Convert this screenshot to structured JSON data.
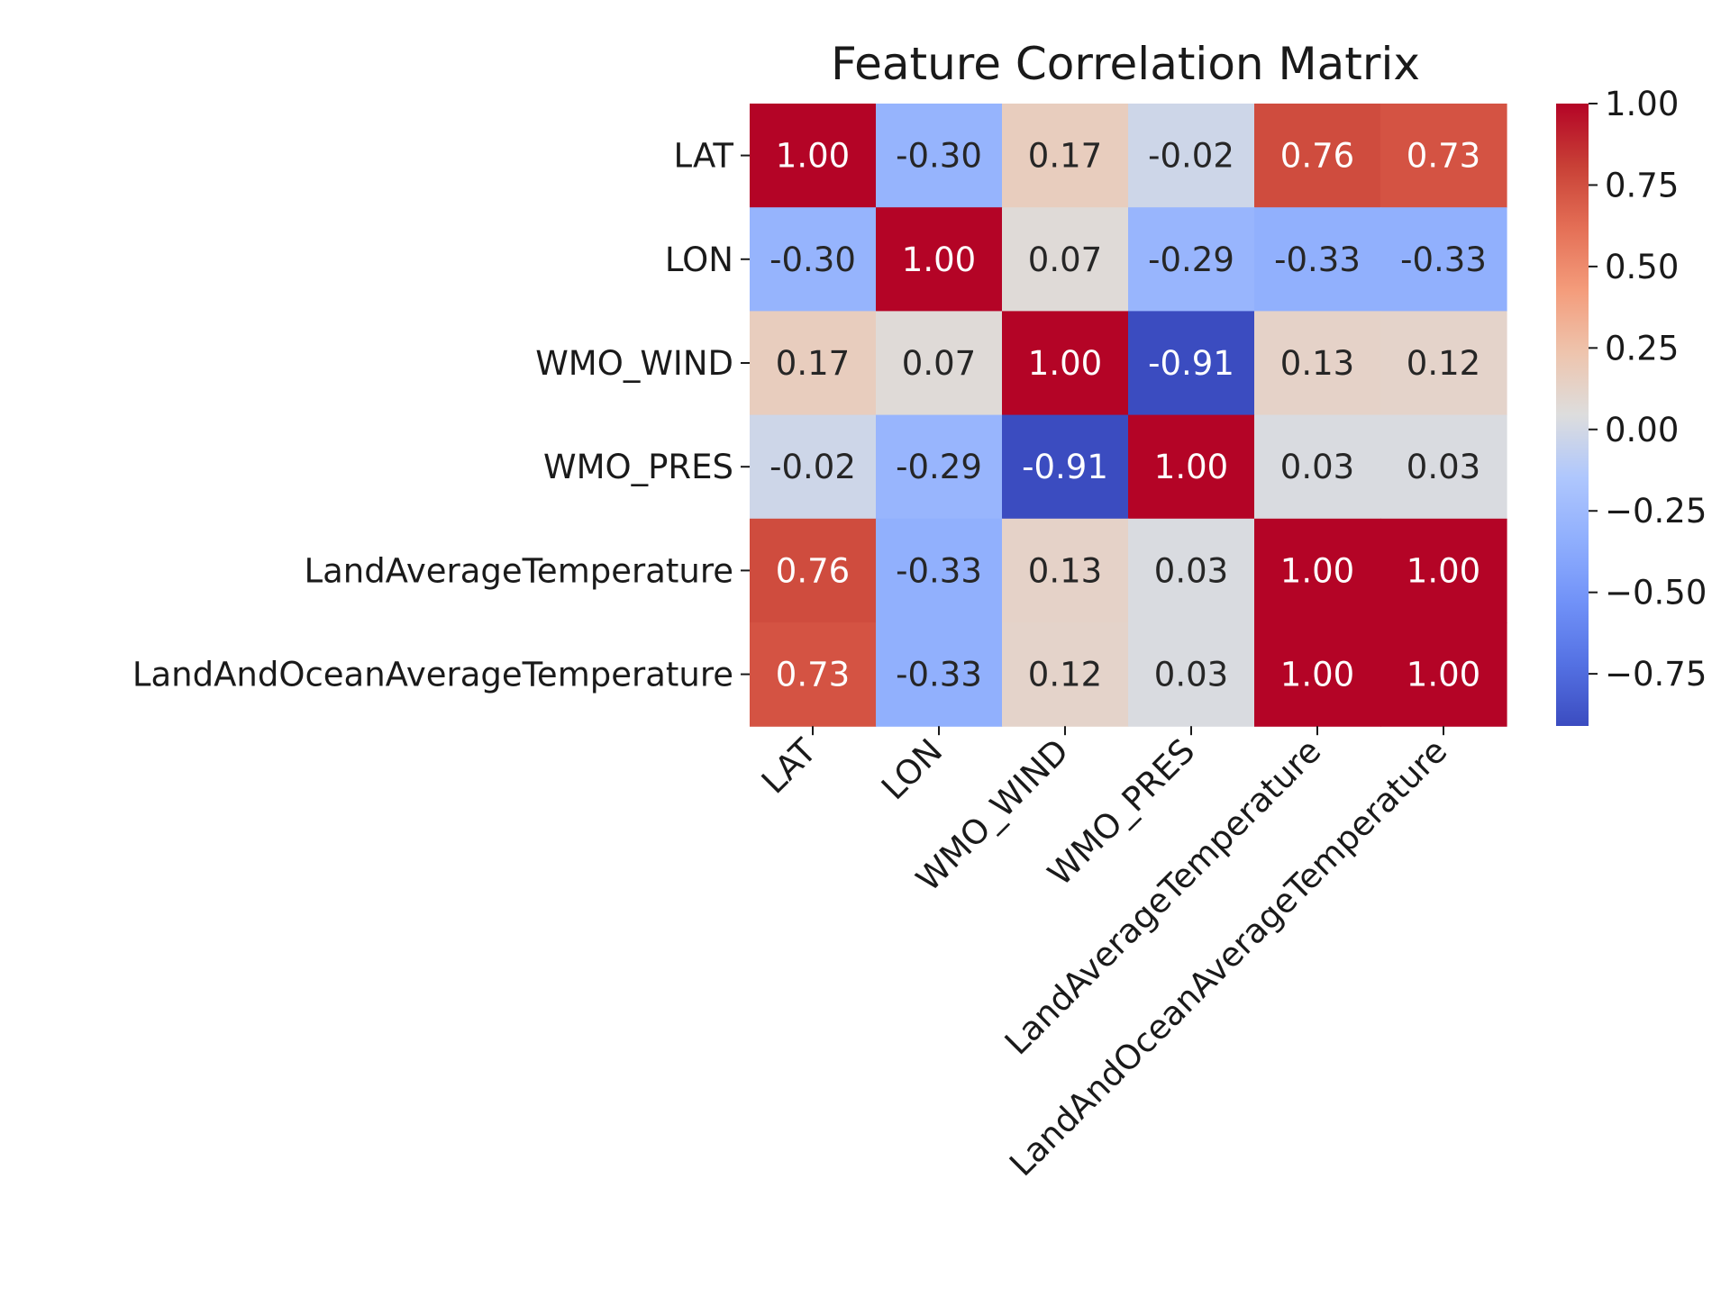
{
  "chart_data": {
    "type": "heatmap",
    "title": "Feature Correlation Matrix",
    "xlabel": "",
    "ylabel": "",
    "row_labels": [
      "LAT",
      "LON",
      "WMO_WIND",
      "WMO_PRES",
      "LandAverageTemperature",
      "LandAndOceanAverageTemperature"
    ],
    "col_labels": [
      "LAT",
      "LON",
      "WMO_WIND",
      "WMO_PRES",
      "LandAverageTemperature",
      "LandAndOceanAverageTemperature"
    ],
    "values": [
      [
        1.0,
        -0.3,
        0.17,
        -0.02,
        0.76,
        0.73
      ],
      [
        -0.3,
        1.0,
        0.07,
        -0.29,
        -0.33,
        -0.33
      ],
      [
        0.17,
        0.07,
        1.0,
        -0.91,
        0.13,
        0.12
      ],
      [
        -0.02,
        -0.29,
        -0.91,
        1.0,
        0.03,
        0.03
      ],
      [
        0.76,
        -0.33,
        0.13,
        0.03,
        1.0,
        1.0
      ],
      [
        0.73,
        -0.33,
        0.12,
        0.03,
        1.0,
        1.0
      ]
    ],
    "annotation_format": "2 decimals",
    "colormap": "coolwarm",
    "color_range": [
      -0.91,
      1.0
    ],
    "colorbar": {
      "placement": "right",
      "ticks": [
        1.0,
        0.75,
        0.5,
        0.25,
        0.0,
        -0.25,
        -0.5,
        -0.75
      ],
      "tick_labels": [
        "1.00",
        "0.75",
        "0.50",
        "0.25",
        "0.00",
        "−0.25",
        "−0.50",
        "−0.75"
      ]
    },
    "x_tick_rotation": 45,
    "grid": false
  }
}
